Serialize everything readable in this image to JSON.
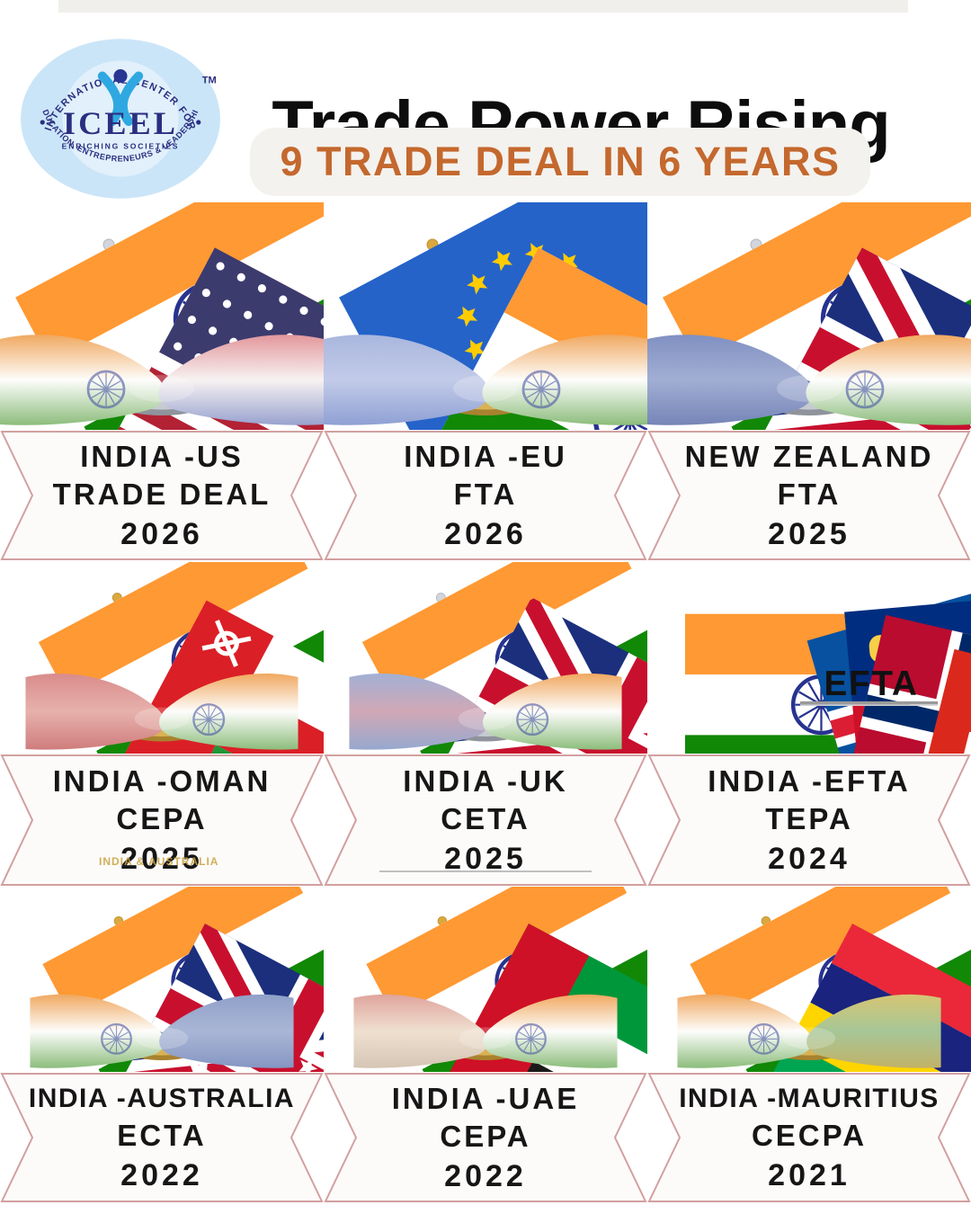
{
  "header": {
    "title": "Trade Power Rising",
    "subtitle": "9 TRADE DEAL IN 6 YEARS"
  },
  "logo": {
    "name": "ICEEL",
    "tagline": "ENRICHING SOCIETIES",
    "arc_top": "INTERNATIONAL  CENTER  FOR",
    "arc_bottom": "EDUCATION,  ENTREPRENEURS  &  LEADERSHIP",
    "trademark": "TM"
  },
  "watermark": "INDIA & AUSTRALIA",
  "efta_label": "EFTA",
  "colors": {
    "accent_orange": "#C4682E",
    "banner_border": "#d2a0a0",
    "india_saffron": "#FF9933",
    "india_green": "#128807"
  },
  "deals": [
    {
      "title": "INDIA -US",
      "acronym": "TRADE DEAL",
      "year": "2026",
      "image": {
        "type": "flags",
        "left": "india",
        "right": "usa",
        "pole": "silver",
        "left_hand": "india",
        "right_hand": "usa"
      }
    },
    {
      "title": "INDIA -EU",
      "acronym": "FTA",
      "year": "2026",
      "image": {
        "type": "flags",
        "left": "eu",
        "right": "india",
        "pole": "gold",
        "left_hand": "eu",
        "right_hand": "india"
      }
    },
    {
      "title": "NEW ZEALAND",
      "acronym": "FTA",
      "year": "2025",
      "image": {
        "type": "flags",
        "left": "india",
        "right": "nz",
        "pole": "silver",
        "left_hand": "nz",
        "right_hand": "india"
      }
    },
    {
      "title": "INDIA -OMAN",
      "acronym": "CEPA",
      "year": "2025",
      "image": {
        "type": "flags",
        "left": "india",
        "right": "oman",
        "pole": "gold",
        "left_hand": "oman",
        "right_hand": "india"
      }
    },
    {
      "title": "INDIA -UK",
      "acronym": "CETA",
      "year": "2025",
      "underline": true,
      "image": {
        "type": "flags",
        "left": "india",
        "right": "uk",
        "pole": "silver",
        "left_hand": "uk",
        "right_hand": "india"
      }
    },
    {
      "title": "INDIA -EFTA",
      "acronym": "TEPA",
      "year": "2024",
      "image": {
        "type": "efta"
      }
    },
    {
      "title": "INDIA -AUSTRALIA",
      "acronym": "ECTA",
      "year": "2022",
      "image": {
        "type": "flags",
        "left": "india",
        "right": "australia",
        "pole": "gold",
        "left_hand": "india",
        "right_hand": "australia"
      }
    },
    {
      "title": "INDIA -UAE",
      "acronym": "CEPA",
      "year": "2022",
      "image": {
        "type": "flags",
        "left": "india",
        "right": "uae",
        "pole": "gold",
        "left_hand": "uae",
        "right_hand": "india"
      }
    },
    {
      "title": "INDIA -MAURITIUS",
      "acronym": "CECPA",
      "year": "2021",
      "image": {
        "type": "flags",
        "left": "india",
        "right": "mauritius",
        "pole": "gold",
        "left_hand": "india",
        "right_hand": "mauritius"
      }
    }
  ]
}
